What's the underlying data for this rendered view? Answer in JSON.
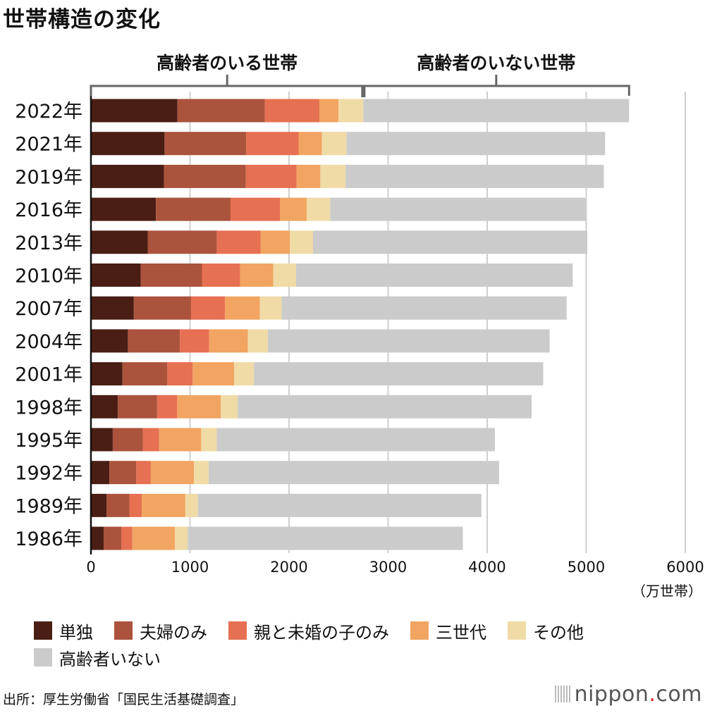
{
  "title": "世帯構造の変化",
  "source": "出所：厚生労働省「国民生活基礎調査」",
  "logo": {
    "name": "nippon",
    "dot": ".",
    "suffix": "com"
  },
  "chart_data": {
    "type": "bar",
    "orientation": "horizontal",
    "stacked": true,
    "title": "世帯構造の変化",
    "group_labels": [
      "高齢者のいる世帯",
      "高齢者のいない世帯"
    ],
    "xlabel": "（万世帯）",
    "xlim": [
      0,
      6000
    ],
    "xticks": [
      "0",
      "1000",
      "2000",
      "3000",
      "4000",
      "5000",
      "6000"
    ],
    "grid": true,
    "legend_position": "bottom",
    "categories": [
      "2022年",
      "2021年",
      "2019年",
      "2016年",
      "2013年",
      "2010年",
      "2007年",
      "2004年",
      "2001年",
      "1998年",
      "1995年",
      "1992年",
      "1989年",
      "1986年"
    ],
    "series": [
      {
        "name": "単独",
        "color": "#4a1e14",
        "values": [
          873,
          743,
          737,
          656,
          573,
          502,
          433,
          373,
          318,
          272,
          220,
          187,
          159,
          128
        ]
      },
      {
        "name": "夫婦のみ",
        "color": "#ab533d",
        "values": [
          882,
          825,
          827,
          753,
          697,
          619,
          578,
          525,
          453,
          396,
          305,
          271,
          229,
          178
        ]
      },
      {
        "name": "親と未婚の子のみ",
        "color": "#e67052",
        "values": [
          551,
          528,
          512,
          501,
          444,
          384,
          342,
          295,
          256,
          203,
          164,
          146,
          126,
          111
        ]
      },
      {
        "name": "三世代",
        "color": "#f2a462",
        "values": [
          193,
          236,
          240,
          268,
          295,
          335,
          353,
          392,
          418,
          440,
          424,
          435,
          439,
          432
        ]
      },
      {
        "name": "その他",
        "color": "#f0dba6",
        "values": [
          251,
          249,
          255,
          238,
          233,
          231,
          220,
          201,
          200,
          171,
          157,
          149,
          126,
          128
        ]
      },
      {
        "name": "高齢者いない",
        "color": "#cbcbcb",
        "values": [
          2683,
          2610,
          2607,
          2578,
          2769,
          2793,
          2876,
          2845,
          2921,
          2967,
          2808,
          2933,
          2863,
          2778
        ]
      }
    ]
  }
}
